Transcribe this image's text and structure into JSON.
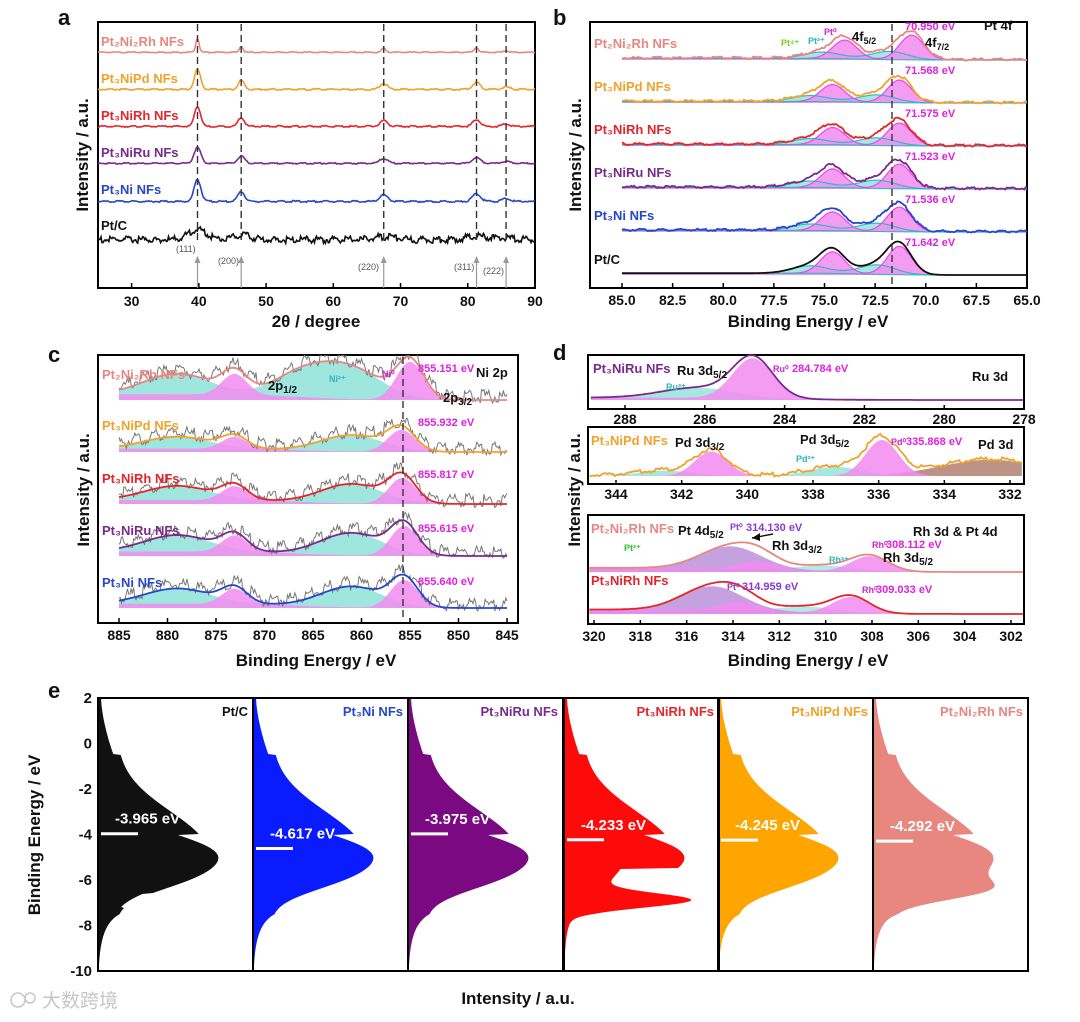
{
  "panels": {
    "a": "a",
    "b": "b",
    "c": "c",
    "d": "d",
    "e": "e"
  },
  "colors": {
    "Pt2Ni2Rh": "#e88780",
    "Pt3NiPd": "#f0a22a",
    "Pt3NiRh": "#e3262b",
    "Pt3NiRu": "#7a2a8c",
    "Pt3Ni": "#2747c9",
    "PtC": "#111111",
    "ptfit": "#ee44ee",
    "bg": "#40c8cc",
    "shade_pt": "#f28bf0",
    "shade_bg": "#8ee2d8"
  },
  "names": {
    "Pt2Ni2Rh": "Pt₂Ni₂Rh NFs",
    "Pt3NiPd": "Pt₃NiPd NFs",
    "Pt3NiRh": "Pt₃NiRh NFs",
    "Pt3NiRu": "Pt₃NiRu NFs",
    "Pt3Ni": "Pt₃Ni NFs",
    "PtC": "Pt/C",
    "Pt3NiRuShort": "Pt₃NiRu NFs"
  },
  "a": {
    "xlabel": "2θ / degree",
    "ylabel": "Intensity / a.u.",
    "ticks": [
      "30",
      "40",
      "50",
      "60",
      "70",
      "80",
      "90"
    ],
    "hkl": [
      "(111)",
      "(200)",
      "(220)",
      "(311)",
      "(222)"
    ]
  },
  "b": {
    "xlabel": "Binding Energy / eV",
    "ylabel": "Intensity / a.u.",
    "title": "Pt 4f",
    "ticks": [
      "85.0",
      "82.5",
      "80.0",
      "77.5",
      "75.0",
      "72.5",
      "70.0",
      "67.5",
      "65.0"
    ],
    "evs": [
      "70.950 eV",
      "71.568 eV",
      "71.575 eV",
      "71.523 eV",
      "71.536 eV",
      "71.642 eV"
    ],
    "f52": "4f",
    "f52s": "5/2",
    "f72": "4f",
    "f72s": "7/2",
    "pt0": "Pt⁰",
    "pt2": "Pt²⁺",
    "pt4": "Pt⁴⁺"
  },
  "c": {
    "xlabel": "Binding Energy / eV",
    "ylabel": "Intensity / a.u.",
    "title": "Ni 2p",
    "ticks": [
      "885",
      "880",
      "875",
      "870",
      "865",
      "860",
      "855",
      "850",
      "845"
    ],
    "evs": [
      "855.151 eV",
      "855.932 eV",
      "855.817 eV",
      "855.615 eV",
      "855.640 eV"
    ],
    "p12": "2p",
    "p12s": "1/2",
    "p32": "2p",
    "p32s": "3/2",
    "ni0": "Ni⁰",
    "ni2": "Ni²⁺"
  },
  "d": {
    "xlabel": "Binding Energy / eV",
    "ylabel": "Intensity / a.u.",
    "ru": {
      "title": "Ru 3d",
      "sample": "Pt₃NiRu NFs",
      "lbl": "Ru 3d",
      "lbls": "5/2",
      "ru0": "Ru⁰",
      "ev": "284.784 eV",
      "ru3": "Ru³⁺",
      "ticks": [
        "288",
        "286",
        "284",
        "282",
        "280",
        "278"
      ]
    },
    "pd": {
      "title": "Pd 3d",
      "sample": "Pt₃NiPd NFs",
      "l1": "Pd 3d",
      "l1s": "3/2",
      "l2": "Pd 3d",
      "l2s": "5/2",
      "pd0": "Pd⁰",
      "ev": "335.868 eV",
      "pd2": "Pd²⁺",
      "ticks": [
        "344",
        "342",
        "340",
        "338",
        "336",
        "334",
        "332"
      ]
    },
    "rh": {
      "title": "Rh 3d & Pt 4d",
      "s1": "Pt₂Ni₂Rh NFs",
      "pt4d": "Pt 4d",
      "pt4ds": "5/2",
      "pt0a": "Pt⁰",
      "ev1": "314.130 eV",
      "rh32": "Rh 3d",
      "rh32s": "3/2",
      "pt2": "Pt²⁺",
      "rh3": "Rh³⁺",
      "rh0a": "Rh⁰",
      "ev2": "308.112 eV",
      "rh52": "Rh 3d",
      "rh52s": "5/2",
      "s2": "Pt₃NiRh NFs",
      "pt0b": "Pt⁰",
      "ev3": "314.959 eV",
      "rh0b": "Rh⁰",
      "ev4": "309.033 eV",
      "ticks": [
        "320",
        "318",
        "316",
        "314",
        "312",
        "310",
        "308",
        "306",
        "304",
        "302"
      ]
    }
  },
  "e": {
    "ylabel": "Binding Energy / eV",
    "xlabel": "Intensity / a.u.",
    "ticks": [
      "2",
      "0",
      "-2",
      "-4",
      "-6",
      "-8",
      "-10"
    ],
    "samples": [
      "Pt/C",
      "Pt₃Ni NFs",
      "Pt₃NiRu NFs",
      "Pt₃NiRh NFs",
      "Pt₃NiPd NFs",
      "Pt₂Ni₂Rh NFs"
    ],
    "centers": [
      "-3.965 eV",
      "-4.617 eV",
      "-3.975 eV",
      "-4.233 eV",
      "-4.245 eV",
      "-4.292 eV"
    ],
    "center_vals": [
      -3.965,
      -4.617,
      -3.975,
      -4.233,
      -4.245,
      -4.292
    ]
  },
  "watermark": "大数跨境"
}
